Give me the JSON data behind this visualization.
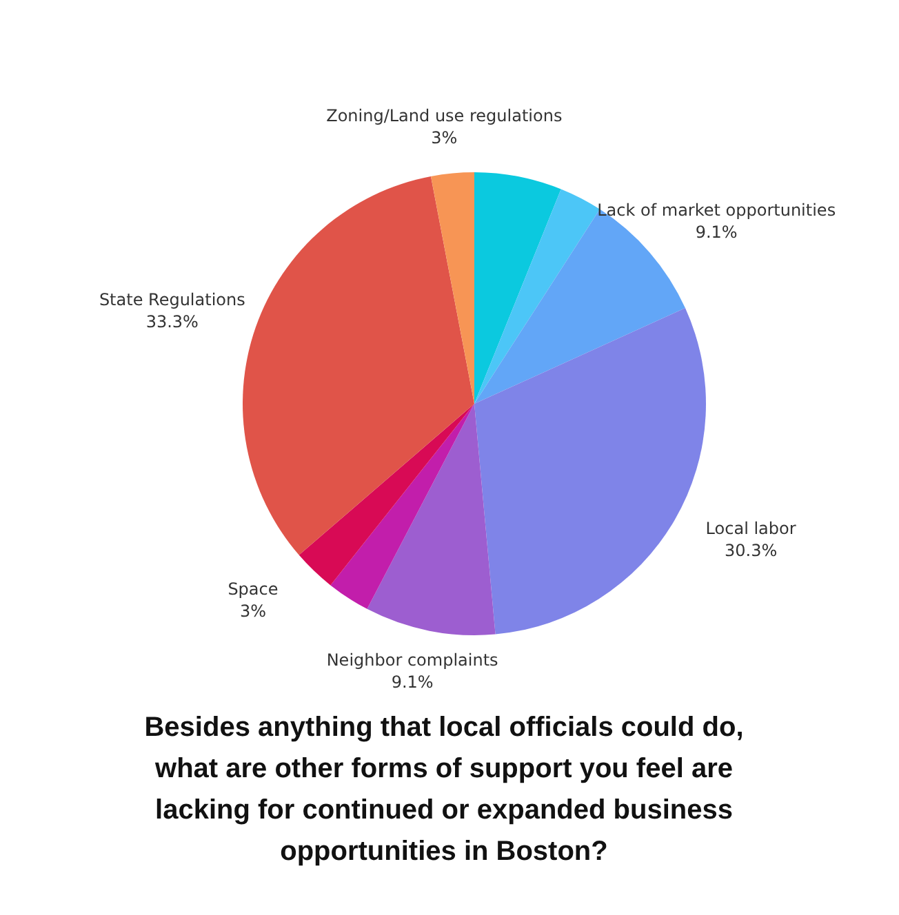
{
  "chart_data": {
    "type": "pie",
    "title": "Besides anything that local officials could do, what are other forms of support you feel are lacking for continued or expanded business opportunities in Boston?",
    "categories": [
      null,
      null,
      "Lack of market opportunities",
      "Local labor",
      "Neighbor complaints",
      null,
      "Space",
      "State Regulations",
      "Zoning/Land use regulations"
    ],
    "values": [
      6.1,
      3,
      9.1,
      30.3,
      9.1,
      3,
      3,
      33.3,
      3
    ],
    "value_labels": [
      null,
      null,
      "9.1%",
      "30.3%",
      "9.1%",
      null,
      "3%",
      "33.3%",
      "3%"
    ],
    "colors": [
      "#0bc9df",
      "#4cc6f7",
      "#62a6f7",
      "#7f84e8",
      "#9d5ed0",
      "#c21eab",
      "#d80a55",
      "#e05449",
      "#f79555"
    ]
  }
}
